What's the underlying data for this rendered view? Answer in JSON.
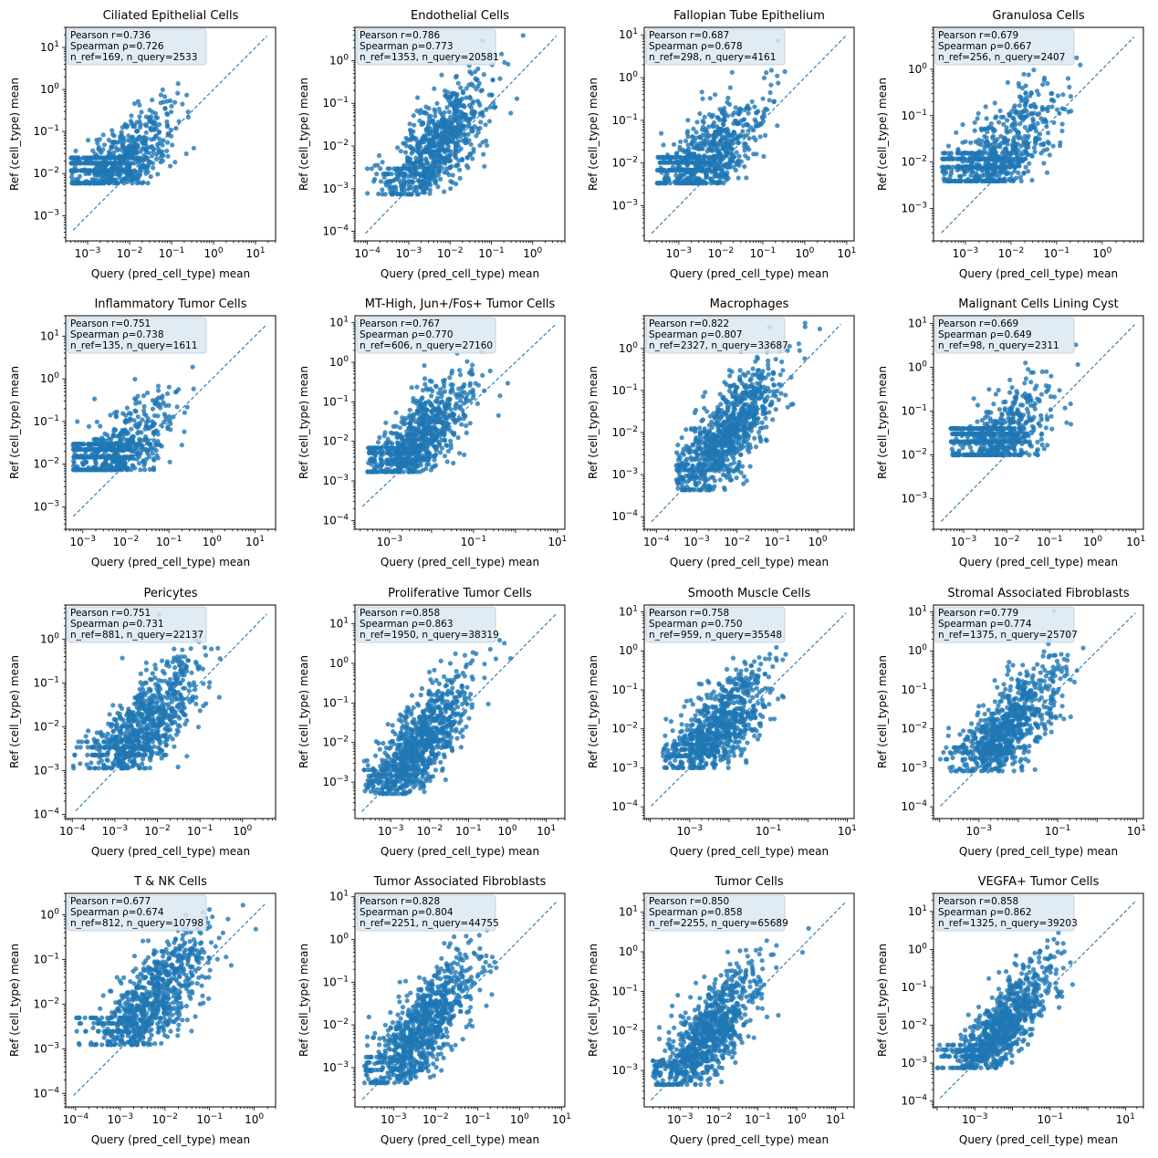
{
  "figure": {
    "style": {
      "point_color": "#1f77b4",
      "line_color": "#1f77b4",
      "stats_box_color": "#dce8f2",
      "background": "#ffffff"
    },
    "xlabel": "Query (pred_cell_type) mean",
    "ylabel": "Ref (cell_type) mean"
  },
  "chart_data": [
    {
      "type": "scatter",
      "title": "Ciliated Epithelial Cells",
      "xscale": "log",
      "yscale": "log",
      "xlim": [
        0.0003,
        30
      ],
      "ylim": [
        0.00025,
        30
      ],
      "xticks": [
        -3,
        -2,
        -1,
        0,
        1
      ],
      "yticks": [
        -3,
        -2,
        -1,
        0,
        1
      ],
      "pearson_r": "0.736",
      "spearman_rho": "0.726",
      "n_ref": "169",
      "n_query": "2533",
      "stats": [
        "Pearson r=0.736",
        "Spearman ρ=0.726",
        "n_ref=169, n_query=2533"
      ],
      "xlabel": "Query (pred_cell_type) mean",
      "ylabel": "Ref (cell_type) mean",
      "y_floor": 0.0059,
      "x_floor": 0.0004,
      "x_max": 20,
      "n_points": 700,
      "trend_slope": 0.85
    },
    {
      "type": "scatter",
      "title": "Endothelial Cells",
      "xscale": "log",
      "yscale": "log",
      "xlim": [
        5e-05,
        6
      ],
      "ylim": [
        6e-05,
        6
      ],
      "xticks": [
        -4,
        -3,
        -2,
        -1,
        0
      ],
      "yticks": [
        -4,
        -3,
        -2,
        -1,
        0
      ],
      "pearson_r": "0.786",
      "spearman_rho": "0.773",
      "n_ref": "1353",
      "n_query": "20581",
      "stats": [
        "Pearson r=0.786",
        "Spearman ρ=0.773",
        "n_ref=1353, n_query=20581"
      ],
      "xlabel": "Query (pred_cell_type) mean",
      "ylabel": "Ref (cell_type) mean",
      "y_floor": 0.00074,
      "x_floor": 7e-05,
      "x_max": 4,
      "n_points": 800,
      "trend_slope": 0.9
    },
    {
      "type": "scatter",
      "title": "Fallopian Tube Epithelium",
      "xscale": "log",
      "yscale": "log",
      "xlim": [
        0.00015,
        15
      ],
      "ylim": [
        0.00015,
        15
      ],
      "xticks": [
        -3,
        -2,
        -1,
        0,
        1
      ],
      "yticks": [
        -3,
        -2,
        -1,
        0,
        1
      ],
      "pearson_r": "0.687",
      "spearman_rho": "0.678",
      "n_ref": "298",
      "n_query": "4161",
      "stats": [
        "Pearson r=0.687",
        "Spearman ρ=0.678",
        "n_ref=298, n_query=4161"
      ],
      "xlabel": "Query (pred_cell_type) mean",
      "ylabel": "Ref (cell_type) mean",
      "y_floor": 0.0034,
      "x_floor": 0.0003,
      "x_max": 10,
      "n_points": 700,
      "trend_slope": 0.85
    },
    {
      "type": "scatter",
      "title": "Granulosa Cells",
      "xscale": "log",
      "yscale": "log",
      "xlim": [
        0.0002,
        8
      ],
      "ylim": [
        0.0002,
        8
      ],
      "xticks": [
        -3,
        -2,
        -1,
        0
      ],
      "yticks": [
        -3,
        -2,
        -1,
        0
      ],
      "pearson_r": "0.679",
      "spearman_rho": "0.667",
      "n_ref": "256",
      "n_query": "2407",
      "stats": [
        "Pearson r=0.679",
        "Spearman ρ=0.667",
        "n_ref=256, n_query=2407"
      ],
      "xlabel": "Query (pred_cell_type) mean",
      "ylabel": "Ref (cell_type) mean",
      "y_floor": 0.0039,
      "x_floor": 0.0003,
      "x_max": 5,
      "n_points": 700,
      "trend_slope": 0.85
    },
    {
      "type": "scatter",
      "title": "Inflammatory Tumor Cells",
      "xscale": "log",
      "yscale": "log",
      "xlim": [
        0.0004,
        30
      ],
      "ylim": [
        0.0003,
        30
      ],
      "xticks": [
        -3,
        -2,
        -1,
        0,
        1
      ],
      "yticks": [
        -3,
        -2,
        -1,
        0,
        1
      ],
      "pearson_r": "0.751",
      "spearman_rho": "0.738",
      "n_ref": "135",
      "n_query": "1611",
      "stats": [
        "Pearson r=0.751",
        "Spearman ρ=0.738",
        "n_ref=135, n_query=1611"
      ],
      "xlabel": "Query (pred_cell_type) mean",
      "ylabel": "Ref (cell_type) mean",
      "y_floor": 0.0074,
      "x_floor": 0.0006,
      "x_max": 15,
      "n_points": 700,
      "trend_slope": 0.85
    },
    {
      "type": "scatter",
      "title": "MT-High, Jun+/Fos+ Tumor Cells",
      "xscale": "log",
      "yscale": "log",
      "xlim": [
        0.00015,
        15
      ],
      "ylim": [
        6e-05,
        15
      ],
      "xticks": [
        -3,
        -1,
        1
      ],
      "yticks": [
        -4,
        -3,
        -2,
        -1,
        0,
        1
      ],
      "pearson_r": "0.767",
      "spearman_rho": "0.770",
      "n_ref": "606",
      "n_query": "27160",
      "stats": [
        "Pearson r=0.767",
        "Spearman ρ=0.770",
        "n_ref=606, n_query=27160"
      ],
      "xlabel": "Query (pred_cell_type) mean",
      "ylabel": "Ref (cell_type) mean",
      "y_floor": 0.0017,
      "x_floor": 0.0003,
      "x_max": 9,
      "n_points": 800,
      "trend_slope": 0.9
    },
    {
      "type": "scatter",
      "title": "Macrophages",
      "xscale": "log",
      "yscale": "log",
      "xlim": [
        5e-05,
        8
      ],
      "ylim": [
        5e-05,
        6
      ],
      "xticks": [
        -4,
        -3,
        -2,
        -1,
        0
      ],
      "yticks": [
        -4,
        -3,
        -2,
        -1,
        0
      ],
      "pearson_r": "0.822",
      "spearman_rho": "0.807",
      "n_ref": "2327",
      "n_query": "33687",
      "stats": [
        "Pearson r=0.822",
        "Spearman ρ=0.807",
        "n_ref=2327, n_query=33687"
      ],
      "xlabel": "Query (pred_cell_type) mean",
      "ylabel": "Ref (cell_type) mean",
      "y_floor": 0.00043,
      "x_floor": 0.0003,
      "x_max": 4,
      "n_points": 900,
      "trend_slope": 1.0
    },
    {
      "type": "scatter",
      "title": "Malignant Cells Lining Cyst",
      "xscale": "log",
      "yscale": "log",
      "xlim": [
        0.0002,
        15
      ],
      "ylim": [
        0.0002,
        15
      ],
      "xticks": [
        -3,
        -2,
        -1,
        0,
        1
      ],
      "yticks": [
        -3,
        -2,
        -1,
        0,
        1
      ],
      "pearson_r": "0.669",
      "spearman_rho": "0.649",
      "n_ref": "98",
      "n_query": "2311",
      "stats": [
        "Pearson r=0.669",
        "Spearman ρ=0.649",
        "n_ref=98, n_query=2311"
      ],
      "xlabel": "Query (pred_cell_type) mean",
      "ylabel": "Ref (cell_type) mean",
      "y_floor": 0.01,
      "x_floor": 0.0005,
      "x_max": 8,
      "n_points": 700,
      "trend_slope": 0.85
    },
    {
      "type": "scatter",
      "title": "Pericytes",
      "xscale": "log",
      "yscale": "log",
      "xlim": [
        7e-05,
        6
      ],
      "ylim": [
        8e-05,
        6
      ],
      "xticks": [
        -4,
        -3,
        -2,
        -1,
        0
      ],
      "yticks": [
        -4,
        -3,
        -2,
        -1,
        0
      ],
      "pearson_r": "0.751",
      "spearman_rho": "0.731",
      "n_ref": "881",
      "n_query": "22137",
      "stats": [
        "Pearson r=0.751",
        "Spearman ρ=0.731",
        "n_ref=881, n_query=22137"
      ],
      "xlabel": "Query (pred_cell_type) mean",
      "ylabel": "Ref (cell_type) mean",
      "y_floor": 0.00113,
      "x_floor": 0.0001,
      "x_max": 3.5,
      "n_points": 800,
      "trend_slope": 0.9
    },
    {
      "type": "scatter",
      "title": "Proliferative Tumor Cells",
      "xscale": "log",
      "yscale": "log",
      "xlim": [
        0.00012,
        30
      ],
      "ylim": [
        0.00012,
        30
      ],
      "xticks": [
        -3,
        -2,
        -1,
        0,
        1
      ],
      "yticks": [
        -3,
        -2,
        -1,
        0,
        1
      ],
      "pearson_r": "0.858",
      "spearman_rho": "0.863",
      "n_ref": "1950",
      "n_query": "38319",
      "stats": [
        "Pearson r=0.858",
        "Spearman ρ=0.863",
        "n_ref=1950, n_query=38319"
      ],
      "xlabel": "Query (pred_cell_type) mean",
      "ylabel": "Ref (cell_type) mean",
      "y_floor": 0.00051,
      "x_floor": 0.0002,
      "x_max": 15,
      "n_points": 900,
      "trend_slope": 1.0
    },
    {
      "type": "scatter",
      "title": "Smooth Muscle Cells",
      "xscale": "log",
      "yscale": "log",
      "xlim": [
        7e-05,
        15
      ],
      "ylim": [
        5e-05,
        15
      ],
      "xticks": [
        -3,
        -1,
        1
      ],
      "yticks": [
        -4,
        -3,
        -2,
        -1,
        0,
        1
      ],
      "pearson_r": "0.758",
      "spearman_rho": "0.750",
      "n_ref": "959",
      "n_query": "35548",
      "stats": [
        "Pearson r=0.758",
        "Spearman ρ=0.750",
        "n_ref=959, n_query=35548"
      ],
      "xlabel": "Query (pred_cell_type) mean",
      "ylabel": "Ref (cell_type) mean",
      "y_floor": 0.001,
      "x_floor": 0.0002,
      "x_max": 6,
      "n_points": 800,
      "trend_slope": 0.9
    },
    {
      "type": "scatter",
      "title": "Stromal Associated Fibroblasts",
      "xscale": "log",
      "yscale": "log",
      "xlim": [
        7e-05,
        15
      ],
      "ylim": [
        5e-05,
        15
      ],
      "xticks": [
        -3,
        -1,
        1
      ],
      "yticks": [
        -4,
        -3,
        -2,
        -1,
        0,
        1
      ],
      "pearson_r": "0.779",
      "spearman_rho": "0.774",
      "n_ref": "1375",
      "n_query": "25707",
      "stats": [
        "Pearson r=0.779",
        "Spearman ρ=0.774",
        "n_ref=1375, n_query=25707"
      ],
      "xlabel": "Query (pred_cell_type) mean",
      "ylabel": "Ref (cell_type) mean",
      "y_floor": 0.00083,
      "x_floor": 0.0001,
      "x_max": 5,
      "n_points": 800,
      "trend_slope": 0.9
    },
    {
      "type": "scatter",
      "title": "T & NK Cells",
      "xscale": "log",
      "yscale": "log",
      "xlim": [
        6e-05,
        3
      ],
      "ylim": [
        5e-05,
        3
      ],
      "xticks": [
        -4,
        -3,
        -2,
        -1,
        0
      ],
      "yticks": [
        -4,
        -3,
        -2,
        -1,
        0
      ],
      "pearson_r": "0.677",
      "spearman_rho": "0.674",
      "n_ref": "812",
      "n_query": "10798",
      "stats": [
        "Pearson r=0.677",
        "Spearman ρ=0.674",
        "n_ref=812, n_query=10798"
      ],
      "xlabel": "Query (pred_cell_type) mean",
      "ylabel": "Ref (cell_type) mean",
      "y_floor": 0.00123,
      "x_floor": 0.0001,
      "x_max": 1.6,
      "n_points": 800,
      "trend_slope": 0.85
    },
    {
      "type": "scatter",
      "title": "Tumor Associated Fibroblasts",
      "xscale": "log",
      "yscale": "log",
      "xlim": [
        0.00012,
        12
      ],
      "ylim": [
        0.00012,
        12
      ],
      "xticks": [
        -3,
        -2,
        -1,
        0,
        1
      ],
      "yticks": [
        -3,
        -2,
        -1,
        0,
        1
      ],
      "pearson_r": "0.828",
      "spearman_rho": "0.804",
      "n_ref": "2251",
      "n_query": "44755",
      "stats": [
        "Pearson r=0.828",
        "Spearman ρ=0.804",
        "n_ref=2251, n_query=44755"
      ],
      "xlabel": "Query (pred_cell_type) mean",
      "ylabel": "Ref (cell_type) mean",
      "y_floor": 0.00044,
      "x_floor": 0.0002,
      "x_max": 6,
      "n_points": 900,
      "trend_slope": 1.0
    },
    {
      "type": "scatter",
      "title": "Tumor Cells",
      "xscale": "log",
      "yscale": "log",
      "xlim": [
        0.00012,
        30
      ],
      "ylim": [
        0.00012,
        30
      ],
      "xticks": [
        -3,
        -2,
        -1,
        0,
        1
      ],
      "yticks": [
        -3,
        -2,
        -1,
        0,
        1
      ],
      "pearson_r": "0.850",
      "spearman_rho": "0.858",
      "n_ref": "2255",
      "n_query": "65689",
      "stats": [
        "Pearson r=0.850",
        "Spearman ρ=0.858",
        "n_ref=2255, n_query=65689"
      ],
      "xlabel": "Query (pred_cell_type) mean",
      "ylabel": "Ref (cell_type) mean",
      "y_floor": 0.00044,
      "x_floor": 0.0002,
      "x_max": 18,
      "n_points": 900,
      "trend_slope": 1.0
    },
    {
      "type": "scatter",
      "title": "VEGFA+ Tumor Cells",
      "xscale": "log",
      "yscale": "log",
      "xlim": [
        8e-05,
        30
      ],
      "ylim": [
        7e-05,
        30
      ],
      "xticks": [
        -3,
        -1,
        1
      ],
      "yticks": [
        -4,
        -3,
        -2,
        -1,
        0,
        1
      ],
      "pearson_r": "0.858",
      "spearman_rho": "0.862",
      "n_ref": "1325",
      "n_query": "39203",
      "stats": [
        "Pearson r=0.858",
        "Spearman ρ=0.862",
        "n_ref=1325, n_query=39203"
      ],
      "xlabel": "Query (pred_cell_type) mean",
      "ylabel": "Ref (cell_type) mean",
      "y_floor": 0.00075,
      "x_floor": 0.0001,
      "x_max": 15,
      "n_points": 900,
      "trend_slope": 1.0
    }
  ]
}
